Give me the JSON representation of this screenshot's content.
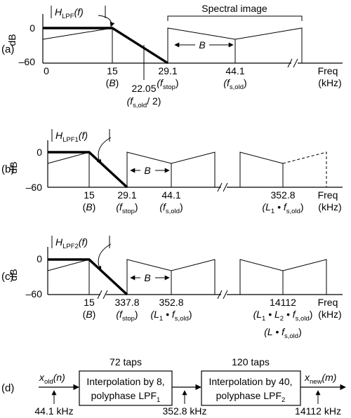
{
  "ylabel": "dB",
  "y_top": "0",
  "y_bottom": "–60",
  "freq_label": "Freq",
  "freq_unit": "(kHz)",
  "colors": {
    "line": "#000000",
    "background": "#ffffff"
  },
  "panel_a": {
    "label": "(a)",
    "x_origin": "0",
    "filter_H": "H",
    "filter_sub": "LPF",
    "filter_arg": "(f)",
    "spectral_image": "Spectral image",
    "bandwidth": "B",
    "t15": "15",
    "t15_sub": "(B)",
    "t22": "22.05",
    "t22_paren_open": "(f",
    "t22_sub": "s,old",
    "t22_paren_close": "/ 2)",
    "t29": "29.1",
    "t29_open": "(f",
    "t29_sub": "stop",
    "t29_close": ")",
    "t44": "44.1",
    "t44_open": "(f",
    "t44_sub": "s,old",
    "t44_close": ")"
  },
  "panel_b": {
    "label": "(b)",
    "filter_H": "H",
    "filter_sub": "LPF1",
    "filter_arg": "(f)",
    "bandwidth": "B",
    "t15": "15",
    "t15_sub": "(B)",
    "t29": "29.1",
    "t29_open": "(f",
    "t29_sub": "stop",
    "t29_close": ")",
    "t44": "44.1",
    "t44_open": "(f",
    "t44_sub": "s,old",
    "t44_close": ")",
    "t352": "352.8",
    "t352_a": "(L",
    "t352_a_sub": "1",
    "t352_b": " • f",
    "t352_b_sub": "s,old",
    "t352_c": ")"
  },
  "panel_c": {
    "label": "(c)",
    "filter_H": "H",
    "filter_sub": "LPF2",
    "filter_arg": "(f)",
    "bandwidth": "B",
    "t15": "15",
    "t15_sub": "(B)",
    "t337": "337.8",
    "t337_open": "(f",
    "t337_sub": "stop",
    "t337_close": ")",
    "t352": "352.8",
    "t352_a": "(L",
    "t352_a_sub": "1",
    "t352_b": " • f",
    "t352_b_sub": "s,old",
    "t352_c": ")",
    "t14112": "14112",
    "t14112_a": "(L",
    "t14112_a_sub": "1",
    "t14112_b": " • L",
    "t14112_b_sub": "2",
    "t14112_c": " • f",
    "t14112_c_sub": "s,old",
    "t14112_d": ")",
    "t14112_e": "(L • f",
    "t14112_e_sub": "s,old",
    "t14112_f": ")"
  },
  "panel_d": {
    "label": "(d)",
    "input_x": "x",
    "input_sub": "old",
    "input_arg": "(n)",
    "output_x": "x",
    "output_sub": "new",
    "output_arg": "(m)",
    "block1_taps": "72 taps",
    "block1_line1": "Interpolation by 8,",
    "block1_line2": "polyphase LPF",
    "block1_line2_sub": "1",
    "block2_taps": "120 taps",
    "block2_line1": "Interpolation by 40,",
    "block2_line2": "polyphase LPF",
    "block2_line2_sub": "2",
    "rate_in": "44.1 kHz",
    "rate_mid": "352.8 kHz",
    "rate_out": "14112 kHz"
  }
}
